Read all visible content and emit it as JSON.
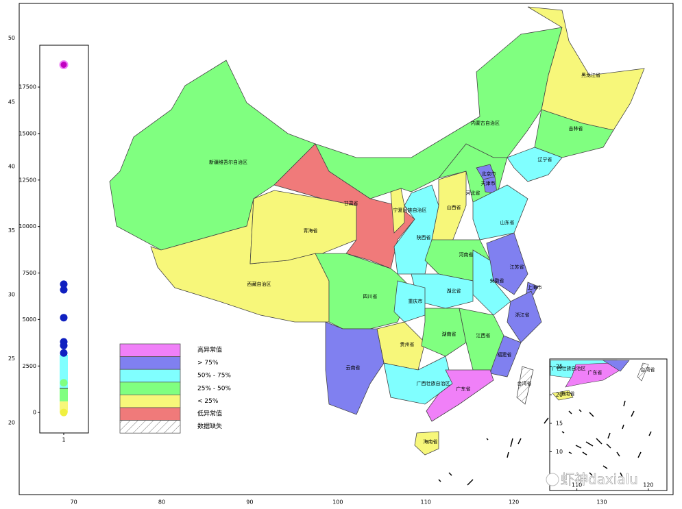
{
  "chart_data": {
    "type": "choropleth",
    "xticks": [
      70,
      80,
      90,
      100,
      110,
      120,
      130
    ],
    "yticks": [
      20,
      25,
      30,
      35,
      40,
      45,
      50
    ],
    "xlim": [
      63.8,
      138.1
    ],
    "ylim": [
      14.4,
      52.7
    ],
    "grid": true,
    "regions": [
      {
        "label": "新疆维吾尔自治区",
        "color": "#80ff80"
      },
      {
        "label": "西藏自治区",
        "color": "#f7f77a"
      },
      {
        "label": "青海省",
        "color": "#f7f77a"
      },
      {
        "label": "甘肃省",
        "color": "#f07a7a"
      },
      {
        "label": "内蒙古自治区",
        "color": "#80ff80"
      },
      {
        "label": "黑龙江省",
        "color": "#f7f77a"
      },
      {
        "label": "吉林省",
        "color": "#80ff80"
      },
      {
        "label": "辽宁省",
        "color": "#80ffff"
      },
      {
        "label": "河北省",
        "color": "#80ff80"
      },
      {
        "label": "北京市",
        "color": "#8080f0"
      },
      {
        "label": "天津市",
        "color": "#8080f0"
      },
      {
        "label": "山西省",
        "color": "#f7f77a"
      },
      {
        "label": "陕西省",
        "color": "#80ffff"
      },
      {
        "label": "宁夏回族自治区",
        "color": "#f7f77a"
      },
      {
        "label": "山东省",
        "color": "#80ffff"
      },
      {
        "label": "河南省",
        "color": "#80ff80"
      },
      {
        "label": "江苏省",
        "color": "#8080f0"
      },
      {
        "label": "安徽省",
        "color": "#80ffff"
      },
      {
        "label": "上海市",
        "color": "#8080f0"
      },
      {
        "label": "浙江省",
        "color": "#8080f0"
      },
      {
        "label": "湖北省",
        "color": "#80ffff"
      },
      {
        "label": "四川省",
        "color": "#80ff80"
      },
      {
        "label": "重庆市",
        "color": "#80ffff"
      },
      {
        "label": "贵州省",
        "color": "#f7f77a"
      },
      {
        "label": "云南省",
        "color": "#8080f0"
      },
      {
        "label": "广西壮族自治区",
        "color": "#80ffff"
      },
      {
        "label": "湖南省",
        "color": "#80ff80"
      },
      {
        "label": "江西省",
        "color": "#80ff80"
      },
      {
        "label": "福建省",
        "color": "#8080f0"
      },
      {
        "label": "广东省",
        "color": "#f080f8"
      },
      {
        "label": "海南省",
        "color": "#f7f77a"
      },
      {
        "label": "台湾省",
        "color": null
      }
    ],
    "legend": [
      {
        "label": "高异常值",
        "color": "#f080f8"
      },
      {
        "label": "> 75%",
        "color": "#8080f0"
      },
      {
        "label": "50% - 75%",
        "color": "#80ffff"
      },
      {
        "label": "25% - 50%",
        "color": "#80ff80"
      },
      {
        "label": "< 25%",
        "color": "#f7f77a"
      },
      {
        "label": "低异常值",
        "color": "#f07a7a"
      },
      {
        "label": "数据缺失",
        "color": null
      }
    ],
    "boxplot": {
      "ylim": [
        -1100,
        19750
      ],
      "yticks": [
        0,
        2500,
        5000,
        7500,
        10000,
        12500,
        15000,
        17500
      ],
      "category": "1",
      "box": {
        "whisker_low": 0,
        "q1": 600,
        "median": 1300,
        "q3": 2400,
        "whisker_high": 3100
      },
      "box_colors": [
        "#f7f77a",
        "#80ff80",
        "#80ffff",
        "#80ffff"
      ],
      "points": [
        {
          "value": 18700,
          "color": "#c000c0"
        },
        {
          "value": 6900,
          "color": "#1020c0"
        },
        {
          "value": 6600,
          "color": "#1020c0"
        },
        {
          "value": 5100,
          "color": "#1020c0"
        },
        {
          "value": 3800,
          "color": "#1020c0"
        },
        {
          "value": 3600,
          "color": "#1020c0"
        },
        {
          "value": 3200,
          "color": "#1020c0"
        },
        {
          "value": 1600,
          "color": "#80ff80"
        },
        {
          "value": 0,
          "color": "#f0f040"
        }
      ]
    },
    "inset": {
      "xticks": [
        110,
        120
      ],
      "yticks": [
        10,
        15,
        20,
        25
      ],
      "xlim": [
        106.2,
        122.6
      ],
      "ylim": [
        3.2,
        26.3
      ],
      "labels": [
        "广西壮族自治区",
        "广东省",
        "台湾省",
        "海南省"
      ]
    },
    "watermark": "虾神daxialu"
  }
}
